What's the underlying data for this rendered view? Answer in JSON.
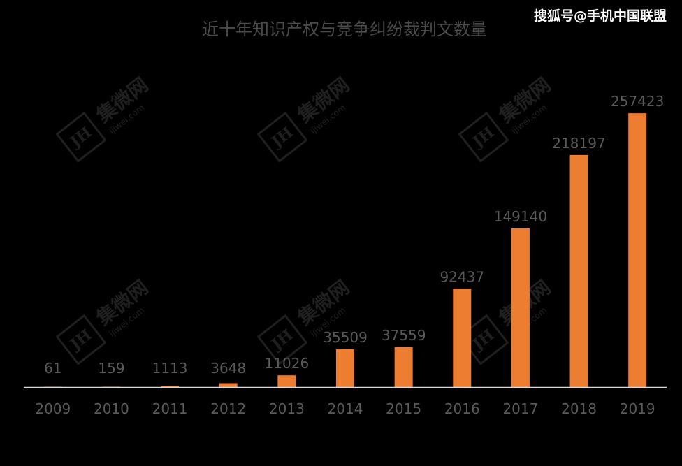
{
  "header": {
    "title": "近十年知识产权与竞争纠纷裁判文数量",
    "source": "搜狐号@手机中国联盟"
  },
  "watermark": {
    "box_text": "JH",
    "cn": "集微网",
    "en": "ijiwei.com"
  },
  "colors": {
    "bar": "#ED7D31",
    "label": "#595959",
    "axis": "#d9d9d9",
    "background": "#000000"
  },
  "chart_data": {
    "type": "bar",
    "title": "近十年知识产权与竞争纠纷裁判文数量",
    "categories": [
      "2009",
      "2010",
      "2011",
      "2012",
      "2013",
      "2014",
      "2015",
      "2016",
      "2017",
      "2018",
      "2019"
    ],
    "values": [
      61,
      159,
      1113,
      3648,
      11026,
      35509,
      37559,
      92437,
      149140,
      218197,
      257423
    ],
    "data_labels": [
      "61",
      "159",
      "1113",
      "3648",
      "11026",
      "35509",
      "37559",
      "92437",
      "149140",
      "218197",
      "257423"
    ],
    "xlabel": "",
    "ylabel": "",
    "ylim": [
      0,
      270000
    ],
    "grid": false,
    "legend": "none"
  }
}
